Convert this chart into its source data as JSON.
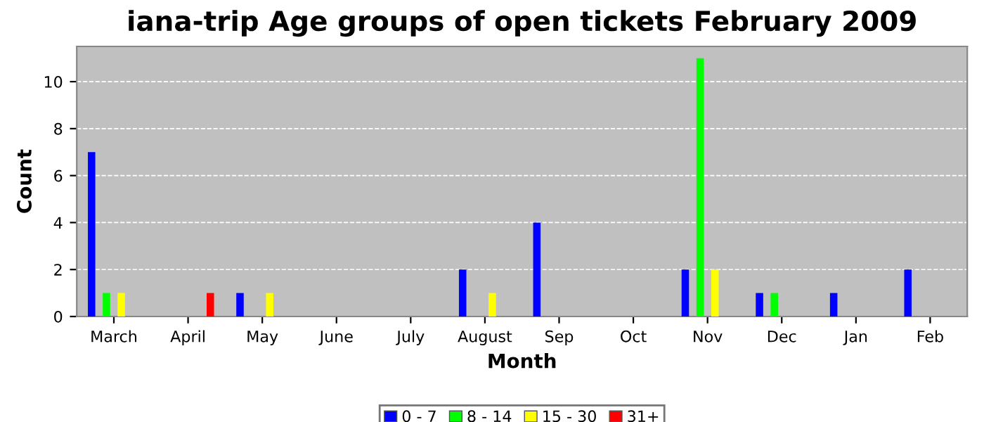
{
  "chart_data": {
    "type": "bar",
    "title": "iana-trip Age groups of open tickets February 2009",
    "xlabel": "Month",
    "ylabel": "Count",
    "categories": [
      "March",
      "April",
      "May",
      "June",
      "July",
      "August",
      "Sep",
      "Oct",
      "Nov",
      "Dec",
      "Jan",
      "Feb"
    ],
    "series": [
      {
        "name": "0 - 7",
        "color": "#0000ff",
        "values": [
          7,
          0,
          1,
          0,
          0,
          2,
          4,
          0,
          2,
          1,
          1,
          2
        ]
      },
      {
        "name": "8 - 14",
        "color": "#00ff00",
        "values": [
          1,
          0,
          0,
          0,
          0,
          0,
          0,
          0,
          11,
          1,
          0,
          0
        ]
      },
      {
        "name": "15 - 30",
        "color": "#ffff00",
        "values": [
          1,
          0,
          1,
          0,
          0,
          1,
          0,
          0,
          2,
          0,
          0,
          0
        ]
      },
      {
        "name": "31+",
        "color": "#ff0000",
        "values": [
          0,
          1,
          0,
          0,
          0,
          0,
          0,
          0,
          0,
          0,
          0,
          0
        ]
      }
    ],
    "ylim": [
      0,
      11.5
    ],
    "yticks": [
      0,
      2,
      4,
      6,
      8,
      10
    ],
    "grid": "y",
    "legend": "bottom"
  }
}
